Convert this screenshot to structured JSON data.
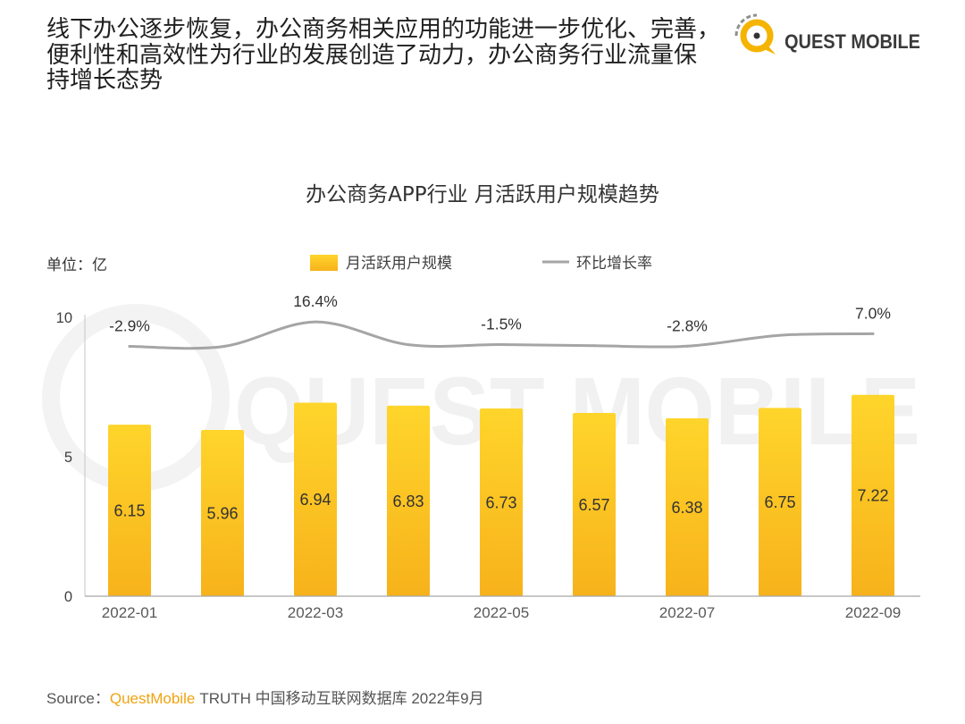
{
  "header": {
    "headline_lines": [
      "线下办公逐步恢复，办公商务相关应用的功能进一步优化、完善，",
      "便利性和高效性为行业的发展创造了动力，办公商务行业流量保",
      "持增长态势"
    ]
  },
  "logo": {
    "text": "QUEST MOBILE",
    "colors": {
      "ring": "#F5B400",
      "dot": "#333333",
      "arcs": "#8F8F8F",
      "text": "#3A3A3A"
    }
  },
  "watermark": {
    "text": "QUEST MOBILE"
  },
  "chart_data": {
    "type": "bar",
    "title": "办公商务APP行业 月活跃用户规模趋势",
    "unit_label": "单位：亿",
    "categories": [
      "2022-01",
      "",
      "2022-03",
      "",
      "2022-05",
      "",
      "2022-07",
      "",
      "2022-09"
    ],
    "ylim": [
      0,
      10
    ],
    "yticks": [
      0,
      5,
      10
    ],
    "y2lim": [
      -200,
      20
    ],
    "grid": false,
    "legend": {
      "placement": "top-center"
    },
    "series": [
      {
        "name": "月活跃用户规模",
        "type": "bar",
        "axis": "y",
        "values": [
          6.15,
          5.96,
          6.94,
          6.83,
          6.73,
          6.57,
          6.38,
          6.75,
          7.22
        ],
        "data_labels": [
          "6.15",
          "5.96",
          "6.94",
          "6.83",
          "6.73",
          "6.57",
          "6.38",
          "6.75",
          "7.22"
        ],
        "color_top": "#FFD52B",
        "color_bottom": "#F7B21B"
      },
      {
        "name": "环比增长率",
        "type": "line",
        "axis": "y2",
        "smooth": true,
        "values": [
          -2.9,
          -3.1,
          16.4,
          -1.6,
          -1.5,
          -2.4,
          -2.8,
          5.8,
          7.0
        ],
        "data_labels": [
          "-2.9%",
          "",
          "16.4%",
          "",
          "-1.5%",
          "",
          "-2.8%",
          "",
          "7.0%"
        ],
        "color": "#A5A5A5"
      }
    ]
  },
  "source": {
    "label": "Source：",
    "brand": "QuestMobile",
    "detail": "TRUTH 中国移动互联网数据库 2022年9月"
  }
}
